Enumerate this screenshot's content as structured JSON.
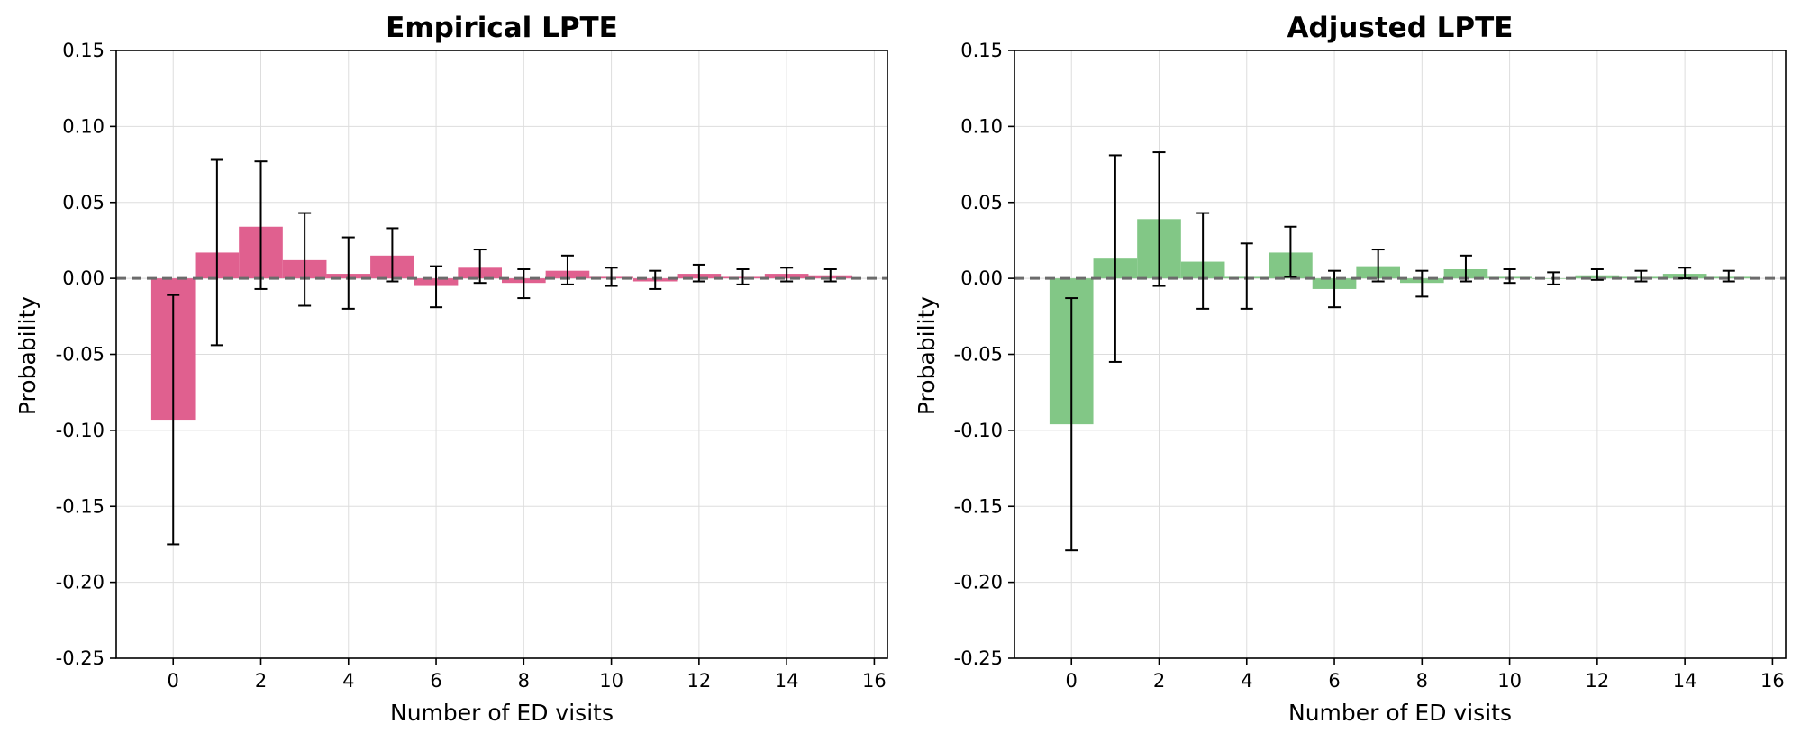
{
  "chart_data": [
    {
      "type": "bar",
      "title": "Empirical LPTE",
      "xlabel": "Number of ED visits",
      "ylabel": "Probability",
      "color": "#e0608f",
      "xlim": [
        -1.3,
        16.3
      ],
      "ylim": [
        -0.25,
        0.15
      ],
      "xticks": [
        0,
        2,
        4,
        6,
        8,
        10,
        12,
        14,
        16
      ],
      "yticks": [
        0.15,
        0.1,
        0.05,
        0.0,
        -0.05,
        -0.1,
        -0.15,
        -0.2,
        -0.25
      ],
      "xtick_labels": [
        "0",
        "2",
        "4",
        "6",
        "8",
        "10",
        "12",
        "14",
        "16"
      ],
      "ytick_labels": [
        "0.15",
        "0.10",
        "0.05",
        "0.00",
        "-0.05",
        "-0.10",
        "-0.15",
        "-0.20",
        "-0.25"
      ],
      "grid": true,
      "reference_line": 0,
      "x": [
        0,
        1,
        2,
        3,
        4,
        5,
        6,
        7,
        8,
        9,
        10,
        11,
        12,
        13,
        14,
        15
      ],
      "values": [
        -0.093,
        0.017,
        0.034,
        0.012,
        0.003,
        0.015,
        -0.005,
        0.007,
        -0.003,
        0.005,
        0.001,
        -0.002,
        0.003,
        0.001,
        0.003,
        0.002
      ],
      "err_low": [
        -0.175,
        -0.044,
        -0.007,
        -0.018,
        -0.02,
        -0.002,
        -0.019,
        -0.003,
        -0.013,
        -0.004,
        -0.005,
        -0.007,
        -0.002,
        -0.004,
        -0.002,
        -0.002
      ],
      "err_high": [
        -0.011,
        0.078,
        0.077,
        0.043,
        0.027,
        0.033,
        0.008,
        0.019,
        0.006,
        0.015,
        0.007,
        0.005,
        0.009,
        0.006,
        0.007,
        0.006
      ]
    },
    {
      "type": "bar",
      "title": "Adjusted LPTE",
      "xlabel": "Number of ED visits",
      "ylabel": "Probability",
      "color": "#82c786",
      "xlim": [
        -1.3,
        16.3
      ],
      "ylim": [
        -0.25,
        0.15
      ],
      "xticks": [
        0,
        2,
        4,
        6,
        8,
        10,
        12,
        14,
        16
      ],
      "yticks": [
        0.15,
        0.1,
        0.05,
        0.0,
        -0.05,
        -0.1,
        -0.15,
        -0.2,
        -0.25
      ],
      "xtick_labels": [
        "0",
        "2",
        "4",
        "6",
        "8",
        "10",
        "12",
        "14",
        "16"
      ],
      "ytick_labels": [
        "0.15",
        "0.10",
        "0.05",
        "0.00",
        "-0.05",
        "-0.10",
        "-0.15",
        "-0.20",
        "-0.25"
      ],
      "grid": true,
      "reference_line": 0,
      "x": [
        0,
        1,
        2,
        3,
        4,
        5,
        6,
        7,
        8,
        9,
        10,
        11,
        12,
        13,
        14,
        15
      ],
      "values": [
        -0.096,
        0.013,
        0.039,
        0.011,
        0.001,
        0.017,
        -0.007,
        0.008,
        -0.003,
        0.006,
        0.001,
        0.0,
        0.002,
        0.001,
        0.003,
        0.001
      ],
      "err_low": [
        -0.179,
        -0.055,
        -0.005,
        -0.02,
        -0.02,
        0.001,
        -0.019,
        -0.002,
        -0.012,
        -0.002,
        -0.003,
        -0.004,
        -0.001,
        -0.002,
        0.0,
        -0.002
      ],
      "err_high": [
        -0.013,
        0.081,
        0.083,
        0.043,
        0.023,
        0.034,
        0.005,
        0.019,
        0.005,
        0.015,
        0.006,
        0.004,
        0.006,
        0.005,
        0.007,
        0.005
      ]
    }
  ]
}
